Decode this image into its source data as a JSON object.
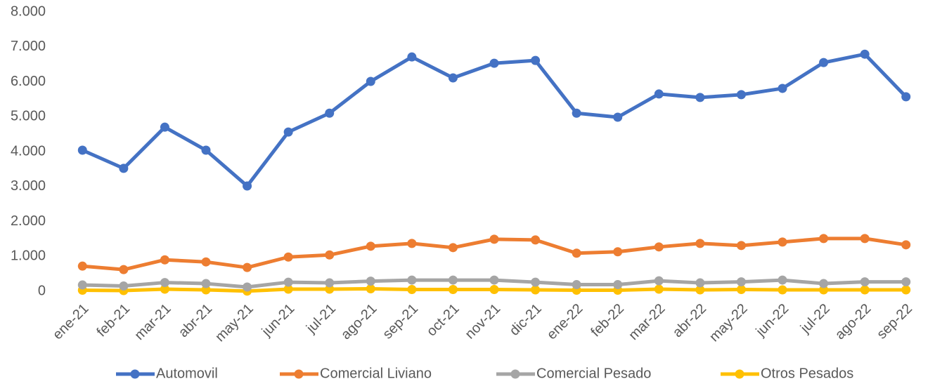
{
  "chart_data": {
    "type": "line",
    "categories": [
      "ene-21",
      "feb-21",
      "mar-21",
      "abr-21",
      "may-21",
      "jun-21",
      "jul-21",
      "ago-21",
      "sep-21",
      "oct-21",
      "nov-21",
      "dic-21",
      "ene-22",
      "feb-22",
      "mar-22",
      "abr-22",
      "may-22",
      "jun-22",
      "jul-22",
      "ago-22",
      "sep-22"
    ],
    "series": [
      {
        "name": "Automovil",
        "color": "#4472c4",
        "values": [
          4040,
          3520,
          4700,
          4040,
          3015,
          4560,
          5100,
          6010,
          6710,
          6110,
          6530,
          6610,
          5100,
          4985,
          5650,
          5550,
          5630,
          5810,
          6550,
          6790,
          5570
        ]
      },
      {
        "name": "Comercial Liviano",
        "color": "#ed7d31",
        "values": [
          720,
          620,
          900,
          840,
          680,
          980,
          1040,
          1290,
          1370,
          1250,
          1490,
          1470,
          1090,
          1130,
          1270,
          1370,
          1310,
          1410,
          1510,
          1510,
          1330
        ]
      },
      {
        "name": "Comercial Pesado",
        "color": "#a5a5a5",
        "values": [
          180,
          150,
          250,
          220,
          120,
          260,
          240,
          290,
          320,
          320,
          320,
          260,
          190,
          190,
          300,
          240,
          270,
          320,
          220,
          270,
          270
        ]
      },
      {
        "name": "Otros Pesados",
        "color": "#ffc000",
        "values": [
          30,
          20,
          60,
          40,
          5,
          60,
          60,
          70,
          50,
          50,
          50,
          40,
          30,
          30,
          60,
          40,
          50,
          40,
          40,
          40,
          40
        ]
      }
    ],
    "ylim": [
      0,
      8000
    ],
    "yticks": [
      0,
      {
        "value": 1000,
        "label": "1.000"
      },
      {
        "value": 2000,
        "label": "2.000"
      },
      {
        "value": 3000,
        "label": "3.000"
      },
      {
        "value": 4000,
        "label": "4.000"
      },
      {
        "value": 5000,
        "label": "5.000"
      },
      {
        "value": 6000,
        "label": "6.000"
      },
      {
        "value": 7000,
        "label": "7.000"
      },
      {
        "value": 8000,
        "label": "8.000"
      }
    ],
    "grid": false,
    "legend": "bottom"
  }
}
